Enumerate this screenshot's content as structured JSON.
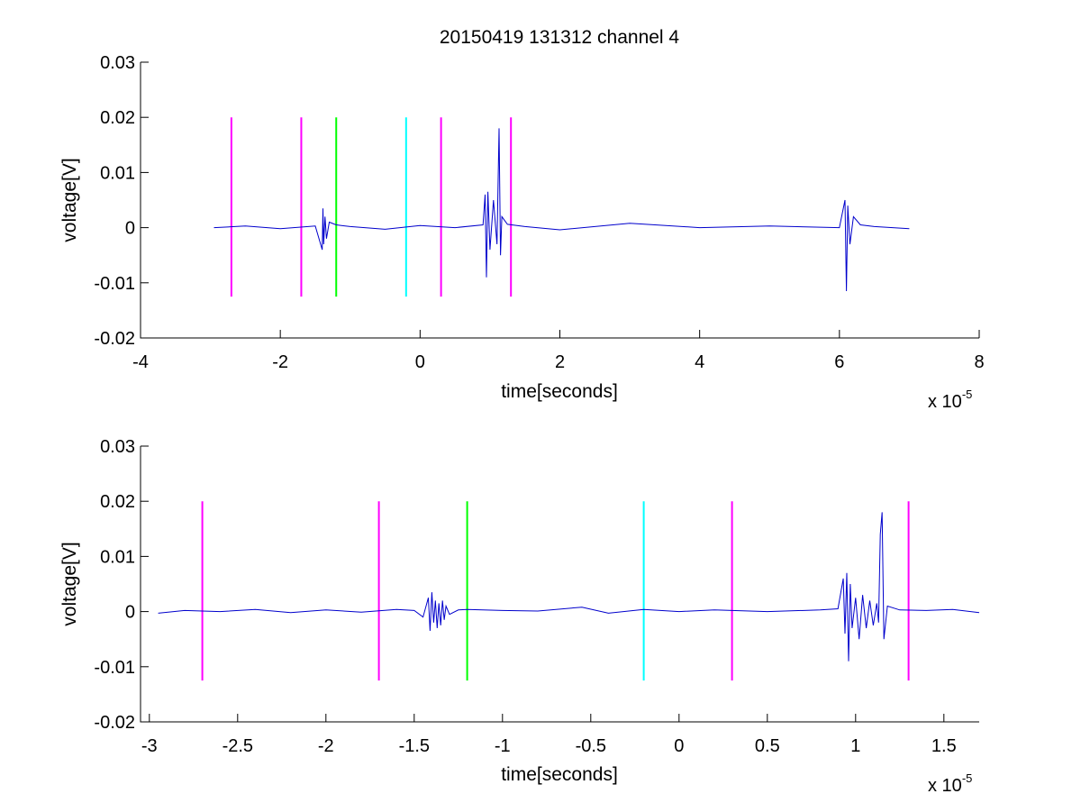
{
  "chart_data": [
    {
      "type": "line",
      "title": "20150419 131312 channel 4",
      "xlabel": "time[seconds]",
      "ylabel": "voltage[V]",
      "x_exponent_base": "x 10",
      "x_exponent_power": "-5",
      "xlim": [
        -4,
        8
      ],
      "ylim": [
        -0.02,
        0.03
      ],
      "xticks": [
        -4,
        -2,
        0,
        2,
        4,
        6,
        8
      ],
      "xtick_labels": [
        "-4",
        "-2",
        "0",
        "2",
        "4",
        "6",
        "8"
      ],
      "yticks": [
        -0.02,
        -0.01,
        0,
        0.01,
        0.02,
        0.03
      ],
      "ytick_labels": [
        "-0.02",
        "-0.01",
        "0",
        "0.01",
        "0.02",
        "0.03"
      ],
      "grid": false,
      "series": [
        {
          "color": "#0000cc",
          "x": [
            -2.95,
            -2.5,
            -2.0,
            -1.5,
            -1.4,
            -1.39,
            -1.38,
            -1.36,
            -1.34,
            -1.3,
            -1.2,
            -1.0,
            -0.5,
            0.0,
            0.5,
            0.9,
            0.93,
            0.95,
            0.97,
            1.0,
            1.05,
            1.1,
            1.13,
            1.15,
            1.17,
            1.25,
            1.5,
            2.0,
            3.0,
            4.0,
            5.0,
            6.0,
            6.08,
            6.1,
            6.12,
            6.15,
            6.2,
            6.3,
            6.5,
            7.0
          ],
          "y": [
            0.0,
            0.0003,
            -0.0002,
            0.0003,
            -0.004,
            0.0035,
            -0.003,
            0.002,
            -0.002,
            0.001,
            0.0005,
            0.0002,
            -0.0003,
            0.0004,
            0.0,
            0.0005,
            0.006,
            -0.009,
            0.0065,
            -0.004,
            0.005,
            -0.003,
            0.018,
            -0.005,
            0.002,
            0.0006,
            0.0002,
            -0.0004,
            0.0008,
            0.0,
            0.0003,
            0.0,
            0.005,
            -0.0115,
            0.004,
            -0.003,
            0.002,
            0.0005,
            0.0002,
            -0.0002
          ]
        }
      ],
      "markers": [
        {
          "x": -2.7,
          "color": "#ff00ff",
          "ymin": -0.0125,
          "ymax": 0.02
        },
        {
          "x": -1.7,
          "color": "#ff00ff",
          "ymin": -0.0125,
          "ymax": 0.02
        },
        {
          "x": -1.2,
          "color": "#00ff00",
          "ymin": -0.0125,
          "ymax": 0.02
        },
        {
          "x": -0.2,
          "color": "#00ffff",
          "ymin": -0.0125,
          "ymax": 0.02
        },
        {
          "x": 0.3,
          "color": "#ff00ff",
          "ymin": -0.0125,
          "ymax": 0.02
        },
        {
          "x": 1.3,
          "color": "#ff00ff",
          "ymin": -0.0125,
          "ymax": 0.02
        }
      ]
    },
    {
      "type": "line",
      "title": "",
      "xlabel": "time[seconds]",
      "ylabel": "voltage[V]",
      "x_exponent_base": "x 10",
      "x_exponent_power": "-5",
      "xlim": [
        -3.05,
        1.7
      ],
      "ylim": [
        -0.02,
        0.03
      ],
      "xticks": [
        -3,
        -2.5,
        -2,
        -1.5,
        -1,
        -0.5,
        0,
        0.5,
        1,
        1.5
      ],
      "xtick_labels": [
        "-3",
        "-2.5",
        "-2",
        "-1.5",
        "-1",
        "-0.5",
        "0",
        "0.5",
        "1",
        "1.5"
      ],
      "yticks": [
        -0.02,
        -0.01,
        0,
        0.01,
        0.02,
        0.03
      ],
      "ytick_labels": [
        "-0.02",
        "-0.01",
        "0",
        "0.01",
        "0.02",
        "0.03"
      ],
      "grid": false,
      "series": [
        {
          "color": "#0000cc",
          "x": [
            -2.95,
            -2.8,
            -2.6,
            -2.4,
            -2.2,
            -2.0,
            -1.8,
            -1.6,
            -1.5,
            -1.45,
            -1.42,
            -1.41,
            -1.4,
            -1.39,
            -1.38,
            -1.37,
            -1.36,
            -1.35,
            -1.34,
            -1.33,
            -1.32,
            -1.3,
            -1.25,
            -1.2,
            -1.0,
            -0.8,
            -0.55,
            -0.4,
            -0.2,
            0.0,
            0.2,
            0.5,
            0.8,
            0.9,
            0.93,
            0.94,
            0.95,
            0.96,
            0.97,
            0.98,
            1.0,
            1.02,
            1.04,
            1.06,
            1.08,
            1.1,
            1.12,
            1.13,
            1.14,
            1.15,
            1.16,
            1.18,
            1.25,
            1.4,
            1.55,
            1.7
          ],
          "y": [
            -0.0003,
            0.0002,
            0.0,
            0.0004,
            -0.0002,
            0.0003,
            -0.0001,
            0.0004,
            0.0002,
            -0.001,
            0.0025,
            -0.0035,
            0.0035,
            -0.002,
            0.002,
            -0.003,
            0.0015,
            -0.0025,
            0.002,
            -0.0015,
            0.001,
            -0.0005,
            0.0003,
            0.0004,
            0.0002,
            0.0001,
            0.0008,
            -0.0003,
            0.0004,
            0.0,
            0.0003,
            0.0,
            0.0003,
            0.0005,
            0.006,
            -0.004,
            0.007,
            -0.009,
            0.005,
            -0.003,
            0.0025,
            -0.005,
            0.003,
            -0.003,
            0.002,
            -0.0025,
            0.0015,
            -0.002,
            0.014,
            0.018,
            -0.005,
            0.001,
            0.0003,
            0.0002,
            0.0004,
            -0.0002
          ]
        }
      ],
      "markers": [
        {
          "x": -2.7,
          "color": "#ff00ff",
          "ymin": -0.0125,
          "ymax": 0.02
        },
        {
          "x": -1.7,
          "color": "#ff00ff",
          "ymin": -0.0125,
          "ymax": 0.02
        },
        {
          "x": -1.2,
          "color": "#00ff00",
          "ymin": -0.0125,
          "ymax": 0.02
        },
        {
          "x": -0.2,
          "color": "#00ffff",
          "ymin": -0.0125,
          "ymax": 0.02
        },
        {
          "x": 0.3,
          "color": "#ff00ff",
          "ymin": -0.0125,
          "ymax": 0.02
        },
        {
          "x": 1.3,
          "color": "#ff00ff",
          "ymin": -0.0125,
          "ymax": 0.02
        }
      ]
    }
  ]
}
